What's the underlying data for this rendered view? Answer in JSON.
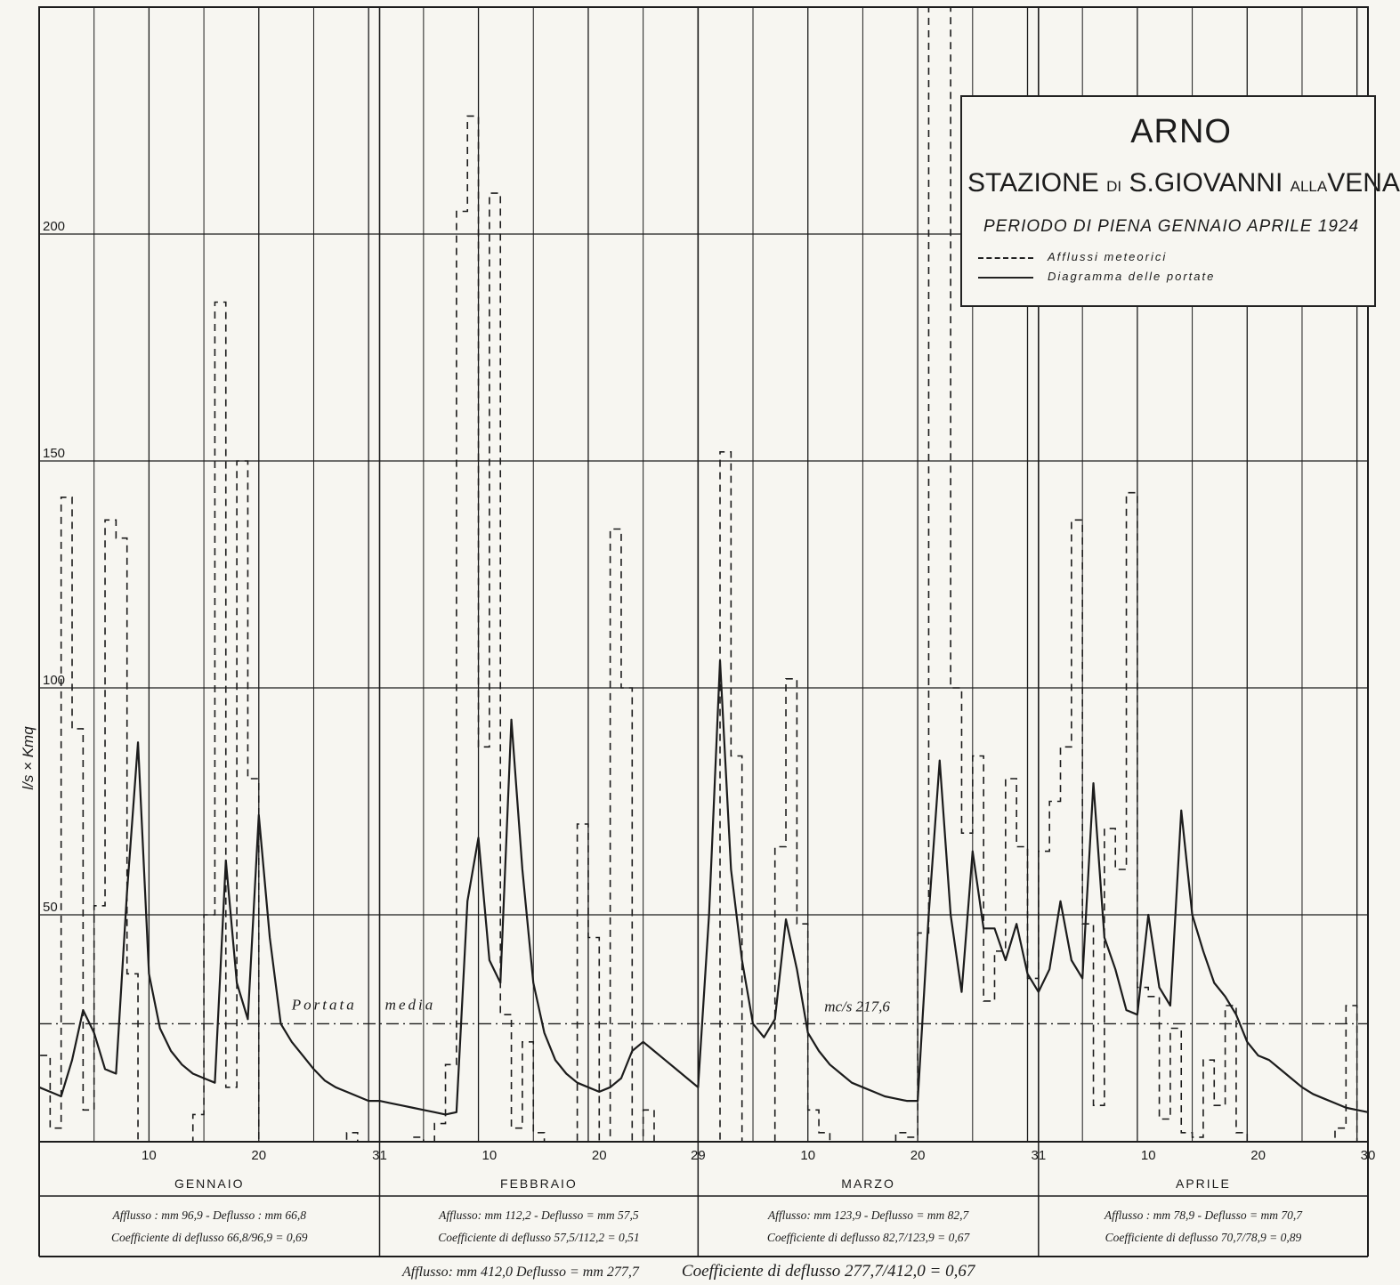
{
  "legend": {
    "river": "ARNO",
    "station_prefix": "STAZIONE",
    "station_di": "DI",
    "station_name": "S.GIOVANNI",
    "station_alla": "ALLA",
    "station_vena": "VENA",
    "period": "PERIODO DI PIENA GENNAIO APRILE 1924",
    "rain_label": "Afflussi meteorici",
    "flow_label": "Diagramma delle portate"
  },
  "axis": {
    "ylabel": "l/s × Kmq",
    "y_ticks": [
      "50",
      "100",
      "150",
      "200"
    ],
    "mean_label_1": "Portata",
    "mean_label_2": "media",
    "mean_value": "mc/s 217,6"
  },
  "months": [
    {
      "name": "GENNAIO",
      "end_label": "31",
      "summary_1": "Afflusso : mm 96,9 - Deflusso : mm 66,8",
      "summary_2": "Coefficiente di deflusso 66,8/96,9 = 0,69"
    },
    {
      "name": "FEBBRAIO",
      "end_label": "29",
      "summary_1": "Afflusso: mm 112,2 - Deflusso = mm 57,5",
      "summary_2": "Coefficiente di deflusso 57,5/112,2 = 0,51"
    },
    {
      "name": "MARZO",
      "end_label": "31",
      "summary_1": "Afflusso: mm 123,9 - Deflusso = mm 82,7",
      "summary_2": "Coefficiente di deflusso 82,7/123,9 = 0,67"
    },
    {
      "name": "APRILE",
      "end_label": "30",
      "summary_1": "Afflusso : mm 78,9 - Deflusso = mm 70,7",
      "summary_2": "Coefficiente di deflusso 70,7/78,9 = 0,89"
    }
  ],
  "day_ticks": [
    "10",
    "20"
  ],
  "footer": {
    "total": "Afflusso: mm 412,0   Deflusso = mm 277,7",
    "coef": "Coefficiente di deflusso 277,7/412,0 = 0,67"
  },
  "colors": {
    "ink": "#1c1c1c",
    "paper": "#f7f6f1"
  },
  "chart_data": {
    "type": "line",
    "title": "ARNO",
    "subtitle": "STAZIONE DI S.GIOVANNI ALLA VENA — PERIODO DI PIENA GENNAIO APRILE 1924",
    "xlabel": "",
    "ylabel": "l/s × Kmq",
    "xlim": [
      0,
      121
    ],
    "ylim": [
      0,
      250
    ],
    "grid": true,
    "legend_position": "top-right",
    "x_ticks": [
      {
        "x": 10,
        "label": "10"
      },
      {
        "x": 20,
        "label": "20"
      },
      {
        "x": 31,
        "label": "31"
      },
      {
        "x": 41,
        "label": "10"
      },
      {
        "x": 51,
        "label": "20"
      },
      {
        "x": 60,
        "label": "29"
      },
      {
        "x": 70,
        "label": "10"
      },
      {
        "x": 80,
        "label": "20"
      },
      {
        "x": 91,
        "label": "31"
      },
      {
        "x": 101,
        "label": "10"
      },
      {
        "x": 111,
        "label": "20"
      },
      {
        "x": 121,
        "label": "30"
      }
    ],
    "mean_flow": 26,
    "series": [
      {
        "name": "Afflussi meteorici",
        "style": "dashed-step",
        "values": [
          19,
          3,
          142,
          91,
          7,
          52,
          137,
          133,
          37,
          0,
          0,
          0,
          0,
          0,
          6,
          50,
          185,
          12,
          150,
          80,
          0,
          0,
          0,
          0,
          0,
          0,
          0,
          0,
          2,
          0,
          0,
          0,
          0,
          0,
          1,
          0,
          4,
          17,
          205,
          226,
          87,
          209,
          28,
          3,
          22,
          2,
          0,
          0,
          0,
          70,
          45,
          0,
          135,
          100,
          0,
          7,
          0,
          0,
          0,
          0,
          0,
          0,
          152,
          85,
          0,
          0,
          0,
          65,
          102,
          48,
          7,
          2,
          0,
          0,
          0,
          0,
          0,
          0,
          2,
          1,
          46,
          250,
          250,
          100,
          68,
          85,
          31,
          42,
          80,
          65,
          36,
          64,
          75,
          87,
          137,
          48,
          8,
          69,
          60,
          143,
          34,
          32,
          5,
          25,
          2,
          1,
          18,
          8,
          30,
          2,
          0,
          0,
          0,
          0,
          0,
          0,
          0,
          0,
          3,
          30
        ]
      },
      {
        "name": "Diagramma delle portate",
        "style": "solid",
        "points": [
          [
            0,
            12
          ],
          [
            1,
            11
          ],
          [
            2,
            10
          ],
          [
            3,
            18
          ],
          [
            4,
            29
          ],
          [
            5,
            24
          ],
          [
            6,
            16
          ],
          [
            7,
            15
          ],
          [
            8,
            55
          ],
          [
            9,
            88
          ],
          [
            10,
            37
          ],
          [
            11,
            25
          ],
          [
            12,
            20
          ],
          [
            13,
            17
          ],
          [
            14,
            15
          ],
          [
            15,
            14
          ],
          [
            16,
            13
          ],
          [
            17,
            62
          ],
          [
            18,
            35
          ],
          [
            19,
            27
          ],
          [
            20,
            72
          ],
          [
            21,
            45
          ],
          [
            22,
            26
          ],
          [
            23,
            22
          ],
          [
            24,
            19
          ],
          [
            25,
            16
          ],
          [
            26,
            13.5
          ],
          [
            27,
            12
          ],
          [
            28,
            11
          ],
          [
            29,
            10
          ],
          [
            30,
            9
          ],
          [
            31,
            9
          ],
          [
            32,
            8.5
          ],
          [
            33,
            8
          ],
          [
            34,
            7.5
          ],
          [
            35,
            7
          ],
          [
            36,
            6.5
          ],
          [
            37,
            6
          ],
          [
            38,
            6.5
          ],
          [
            39,
            53
          ],
          [
            40,
            67
          ],
          [
            41,
            40
          ],
          [
            42,
            35
          ],
          [
            43,
            93
          ],
          [
            44,
            60
          ],
          [
            45,
            35
          ],
          [
            46,
            24
          ],
          [
            47,
            18
          ],
          [
            48,
            15
          ],
          [
            49,
            13
          ],
          [
            50,
            12
          ],
          [
            51,
            11
          ],
          [
            52,
            12
          ],
          [
            53,
            14
          ],
          [
            54,
            20
          ],
          [
            55,
            22
          ],
          [
            56,
            20
          ],
          [
            57,
            18
          ],
          [
            58,
            16
          ],
          [
            59,
            14
          ],
          [
            60,
            12
          ],
          [
            61,
            50
          ],
          [
            62,
            106
          ],
          [
            63,
            60
          ],
          [
            64,
            40
          ],
          [
            65,
            26
          ],
          [
            66,
            23
          ],
          [
            67,
            27
          ],
          [
            68,
            49
          ],
          [
            69,
            38
          ],
          [
            70,
            24
          ],
          [
            71,
            20
          ],
          [
            72,
            17
          ],
          [
            73,
            15
          ],
          [
            74,
            13
          ],
          [
            75,
            12
          ],
          [
            76,
            11
          ],
          [
            77,
            10
          ],
          [
            78,
            9.5
          ],
          [
            79,
            9
          ],
          [
            80,
            9
          ],
          [
            81,
            50
          ],
          [
            82,
            84
          ],
          [
            83,
            50
          ],
          [
            84,
            33
          ],
          [
            85,
            64
          ],
          [
            86,
            47
          ],
          [
            87,
            47
          ],
          [
            88,
            40
          ],
          [
            89,
            48
          ],
          [
            90,
            37
          ],
          [
            91,
            33
          ],
          [
            92,
            38
          ],
          [
            93,
            53
          ],
          [
            94,
            40
          ],
          [
            95,
            36
          ],
          [
            96,
            79
          ],
          [
            97,
            45
          ],
          [
            98,
            38
          ],
          [
            99,
            29
          ],
          [
            100,
            28
          ],
          [
            101,
            50
          ],
          [
            102,
            34
          ],
          [
            103,
            30
          ],
          [
            104,
            73
          ],
          [
            105,
            50
          ],
          [
            106,
            42
          ],
          [
            107,
            35
          ],
          [
            108,
            32
          ],
          [
            109,
            28
          ],
          [
            110,
            22
          ],
          [
            111,
            19
          ],
          [
            112,
            18
          ],
          [
            113,
            16
          ],
          [
            114,
            14
          ],
          [
            115,
            12
          ],
          [
            116,
            10.5
          ],
          [
            117,
            9.5
          ],
          [
            118,
            8.5
          ],
          [
            119,
            7.5
          ],
          [
            120,
            7
          ],
          [
            121,
            6.5
          ]
        ]
      }
    ]
  }
}
